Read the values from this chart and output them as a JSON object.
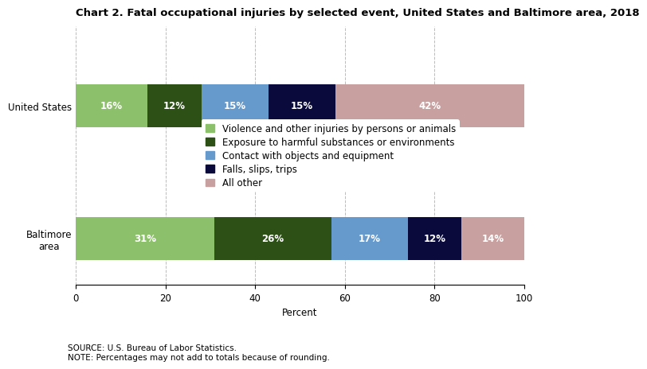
{
  "title": "Chart 2. Fatal occupational injuries by selected event, United States and Baltimore area, 2018",
  "categories": [
    "United States",
    "Baltimore\narea"
  ],
  "series": [
    {
      "label": "Violence and other injuries by persons or animals",
      "color": "#8DC06A",
      "values": [
        16,
        31
      ]
    },
    {
      "label": "Exposure to harmful substances or environments",
      "color": "#2D5016",
      "values": [
        12,
        26
      ]
    },
    {
      "label": "Contact with objects and equipment",
      "color": "#6699CC",
      "values": [
        15,
        17
      ]
    },
    {
      "label": "Falls, slips, trips",
      "color": "#0A0A3C",
      "values": [
        15,
        12
      ]
    },
    {
      "label": "All other",
      "color": "#C8A0A0",
      "values": [
        42,
        14
      ]
    }
  ],
  "xlabel": "Percent",
  "xlim": [
    0,
    100
  ],
  "xticks": [
    0,
    20,
    40,
    60,
    80,
    100
  ],
  "source_line1": "SOURCE: U.S. Bureau of Labor Statistics.",
  "source_line2": "NOTE: Percentages may not add to totals because of rounding.",
  "bar_height": 0.65,
  "title_fontsize": 9.5,
  "label_fontsize": 8.5,
  "tick_fontsize": 8.5,
  "legend_fontsize": 8.5,
  "text_color": "#FFFFFF",
  "background_color": "#FFFFFF",
  "grid_color": "#BBBBBB",
  "y_us": 2,
  "y_balt": 0,
  "ylim_bottom": -0.7,
  "ylim_top": 3.2
}
